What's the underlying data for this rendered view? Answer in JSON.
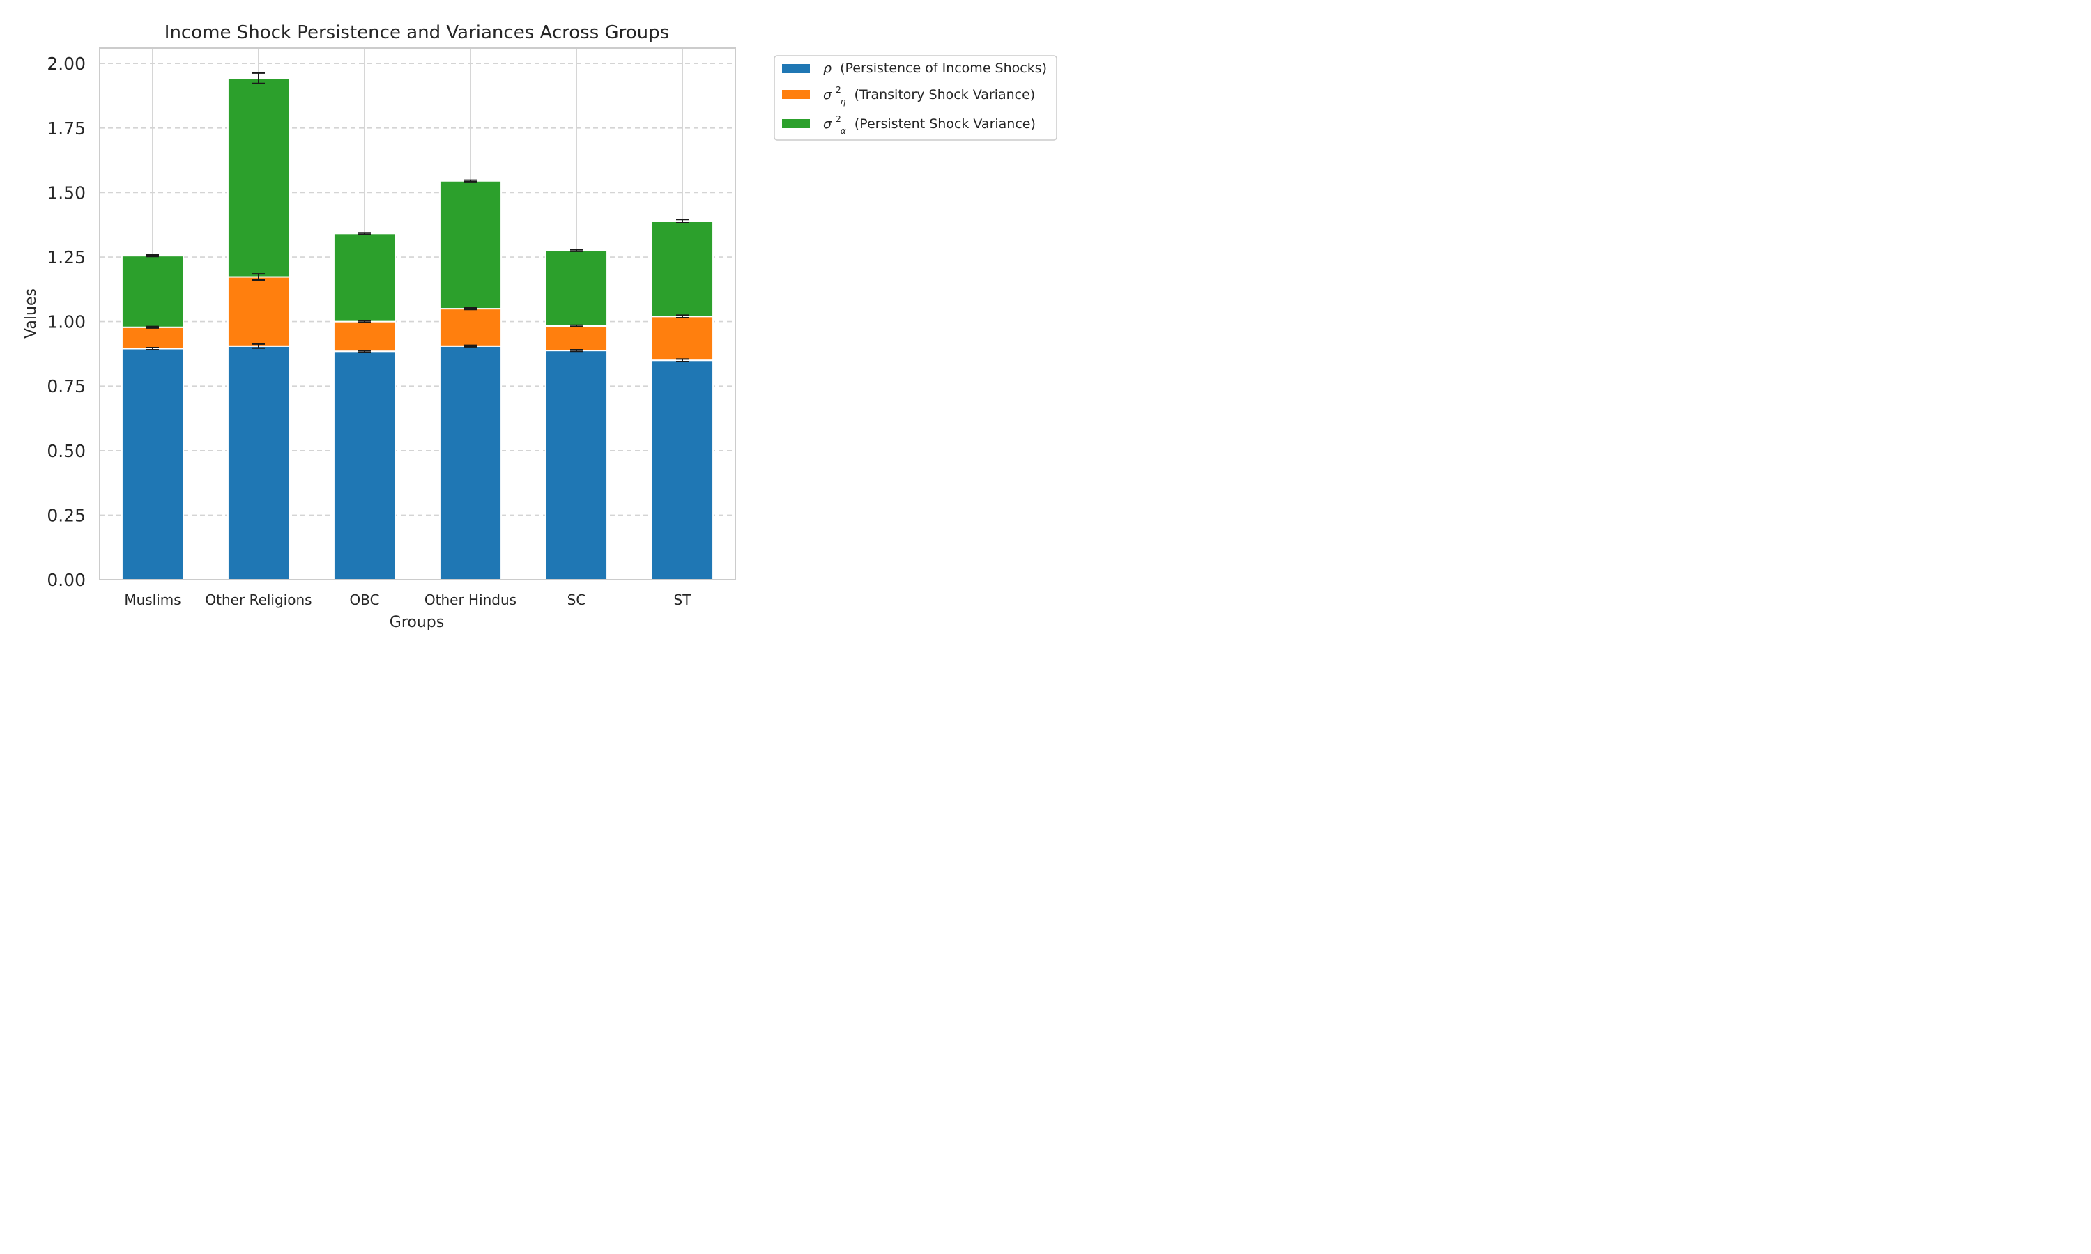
{
  "chart_data": {
    "type": "bar",
    "stacked": true,
    "title": "Income Shock Persistence and Variances Across Groups",
    "xlabel": "Groups",
    "ylabel": "Values",
    "ylim": [
      0,
      2.06
    ],
    "yticks": [
      "0.00",
      "0.25",
      "0.50",
      "0.75",
      "1.00",
      "1.25",
      "1.50",
      "1.75",
      "2.00"
    ],
    "grid": true,
    "legend_position": "outside top-right",
    "categories": [
      "Muslims",
      "Other Religions",
      "OBC",
      "Other Hindus",
      "SC",
      "ST"
    ],
    "series": [
      {
        "name": "(Persistence of Income Shocks)",
        "symbol": "ρ",
        "color": "#1f77b4",
        "values": [
          0.895,
          0.905,
          0.885,
          0.905,
          0.888,
          0.85
        ],
        "errors": [
          0.004,
          0.008,
          0.003,
          0.003,
          0.003,
          0.005
        ]
      },
      {
        "name": "(Transitory Shock Variance)",
        "symbol": "σ",
        "superscript": "2",
        "subscript": "η",
        "color": "#ff7f0e",
        "values": [
          0.083,
          0.268,
          0.115,
          0.145,
          0.095,
          0.17
        ],
        "errors": [
          0.003,
          0.012,
          0.003,
          0.003,
          0.003,
          0.005
        ]
      },
      {
        "name": "(Persistent Shock Variance)",
        "symbol": "σ",
        "superscript": "2",
        "subscript": "α",
        "color": "#2ca02c",
        "values": [
          0.277,
          0.77,
          0.341,
          0.495,
          0.292,
          0.37
        ],
        "errors": [
          0.003,
          0.02,
          0.003,
          0.003,
          0.003,
          0.005
        ]
      }
    ]
  }
}
